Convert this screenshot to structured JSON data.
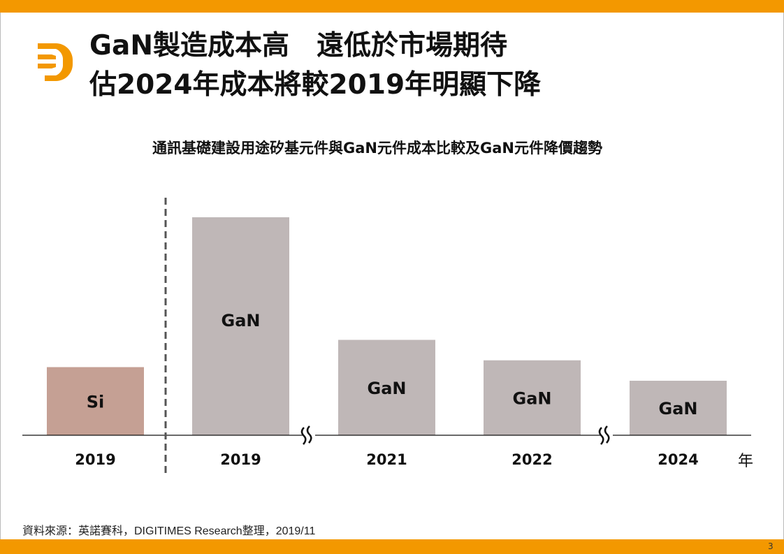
{
  "header": {
    "title_line1": "GaN製造成本高　遠低於市場期待",
    "title_line2": "估2024年成本將較2019年明顯下降",
    "logo_icon": "digitimes-d-logo"
  },
  "colors": {
    "accent": "#f39800",
    "si_bar": "#c5a094",
    "gan_bar": "#bfb7b7"
  },
  "chart_data": {
    "type": "bar",
    "title": "通訊基礎建設用途矽基元件與GaN元件成本比較及GaN元件降價趨勢",
    "categories": [
      "2019",
      "2019",
      "2021",
      "2022",
      "2024"
    ],
    "bar_labels": [
      "Si",
      "GaN",
      "GaN",
      "GaN",
      "GaN"
    ],
    "values": [
      1.0,
      3.2,
      1.4,
      1.1,
      0.8
    ],
    "value_note_relative": true,
    "xlabel": "年",
    "ylabel": "",
    "y_axis_shown": false,
    "grid": false,
    "axis_breaks_after": [
      "2019",
      "2022"
    ],
    "divider_after_index": 0
  },
  "footer": {
    "source": "資料來源：英諾賽科，DIGITIMES Research整理，2019/11",
    "page_number": "3"
  }
}
